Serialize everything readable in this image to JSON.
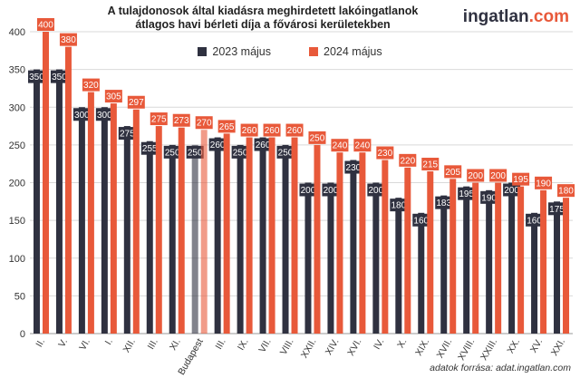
{
  "header": {
    "title_line1": "A tulajdonosok által kiadásra meghirdetett lakóingatlanok",
    "title_line2": "átlagos havi bérleti díja a fővárosi kerületekben",
    "brand_main": "ingatlan",
    "brand_suffix": ".com"
  },
  "footer": {
    "source": "adatok forrása: adat.ingatlan.com"
  },
  "chart_data": {
    "type": "bar",
    "categories": [
      "II.",
      "V.",
      "VI.",
      "I.",
      "XII.",
      "III.",
      "XI.",
      "Budapest",
      "III.",
      "IX.",
      "VII.",
      "VIII.",
      "XXII.",
      "XIV.",
      "XVI.",
      "IV.",
      "X.",
      "XIX.",
      "XVII.",
      "XVIII.",
      "XXIII.",
      "XX.",
      "XV.",
      "XXI."
    ],
    "series": [
      {
        "name": "2023 május",
        "color": "#2f3140",
        "values": [
          350,
          350,
          300,
          300,
          275,
          255,
          250,
          250,
          260,
          250,
          260,
          250,
          200,
          200,
          230,
          200,
          180,
          160,
          183,
          195,
          190,
          200,
          160,
          175
        ]
      },
      {
        "name": "2024 május",
        "color": "#e8593a",
        "values": [
          400,
          380,
          320,
          305,
          297,
          275,
          273,
          270,
          265,
          260,
          260,
          260,
          250,
          240,
          240,
          230,
          220,
          215,
          205,
          200,
          200,
          195,
          190,
          180
        ]
      }
    ],
    "ylim": [
      0,
      400
    ],
    "yticks": [
      0,
      50,
      100,
      150,
      200,
      250,
      300,
      350,
      400
    ],
    "grid": true,
    "legend": "top-center"
  }
}
